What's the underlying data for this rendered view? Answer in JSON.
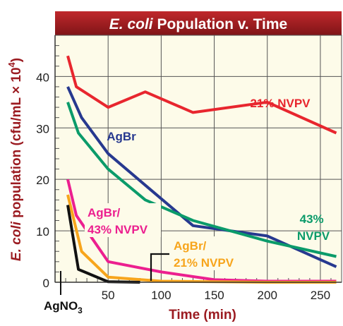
{
  "chart_data": {
    "type": "line",
    "title_italic": "E. coli",
    "title_rest": " Population v. Time",
    "xlabel": "Time (min)",
    "ylabel_italic": "E. coli",
    "ylabel_rest": " population (cfu/mL × 10",
    "ylabel_sup": "4",
    "ylabel_close": ")",
    "xlim": [
      0,
      270
    ],
    "ylim": [
      0,
      48
    ],
    "x_ticks": [
      50,
      100,
      150,
      200,
      250
    ],
    "y_ticks": [
      0,
      10,
      20,
      30,
      40
    ],
    "grid": true,
    "series": [
      {
        "name": "21% NVPV",
        "color": "#e8262e",
        "label_lines": [
          "21% NVPV"
        ],
        "points": [
          [
            12,
            44
          ],
          [
            20,
            38
          ],
          [
            50,
            34
          ],
          [
            85,
            37
          ],
          [
            130,
            33
          ],
          [
            200,
            35
          ],
          [
            265,
            29
          ]
        ]
      },
      {
        "name": "AgBr",
        "color": "#27398f",
        "label_lines": [
          "AgBr"
        ],
        "points": [
          [
            12,
            38
          ],
          [
            25,
            32
          ],
          [
            50,
            25
          ],
          [
            90,
            18
          ],
          [
            130,
            11
          ],
          [
            200,
            9
          ],
          [
            265,
            3
          ]
        ]
      },
      {
        "name": "43% NVPV",
        "color": "#0b9b6a",
        "label_lines": [
          "43%",
          "NVPV"
        ],
        "points": [
          [
            12,
            35
          ],
          [
            22,
            29
          ],
          [
            50,
            22
          ],
          [
            85,
            16
          ],
          [
            130,
            12
          ],
          [
            200,
            8
          ],
          [
            265,
            5
          ]
        ]
      },
      {
        "name": "AgBr/ 43% NVPV",
        "color": "#ec1f8f",
        "label_lines": [
          "AgBr/",
          "43% NVPV"
        ],
        "points": [
          [
            12,
            20
          ],
          [
            20,
            13
          ],
          [
            50,
            4
          ],
          [
            100,
            2
          ],
          [
            150,
            0.5
          ],
          [
            200,
            0.2
          ],
          [
            265,
            0.2
          ]
        ]
      },
      {
        "name": "AgBr/ 21% NVPV",
        "color": "#f7a51c",
        "label_lines": [
          "AgBr/",
          "21% NVPV"
        ],
        "points": [
          [
            12,
            17
          ],
          [
            25,
            6
          ],
          [
            50,
            1
          ],
          [
            100,
            0.2
          ],
          [
            150,
            0.1
          ],
          [
            200,
            0
          ],
          [
            265,
            0
          ]
        ]
      },
      {
        "name": "AgNO3",
        "color": "#111111",
        "label_lines": [
          "AgNO3"
        ],
        "points": [
          [
            12,
            15
          ],
          [
            22,
            2.5
          ],
          [
            50,
            0.1
          ],
          [
            80,
            0
          ]
        ]
      }
    ]
  }
}
